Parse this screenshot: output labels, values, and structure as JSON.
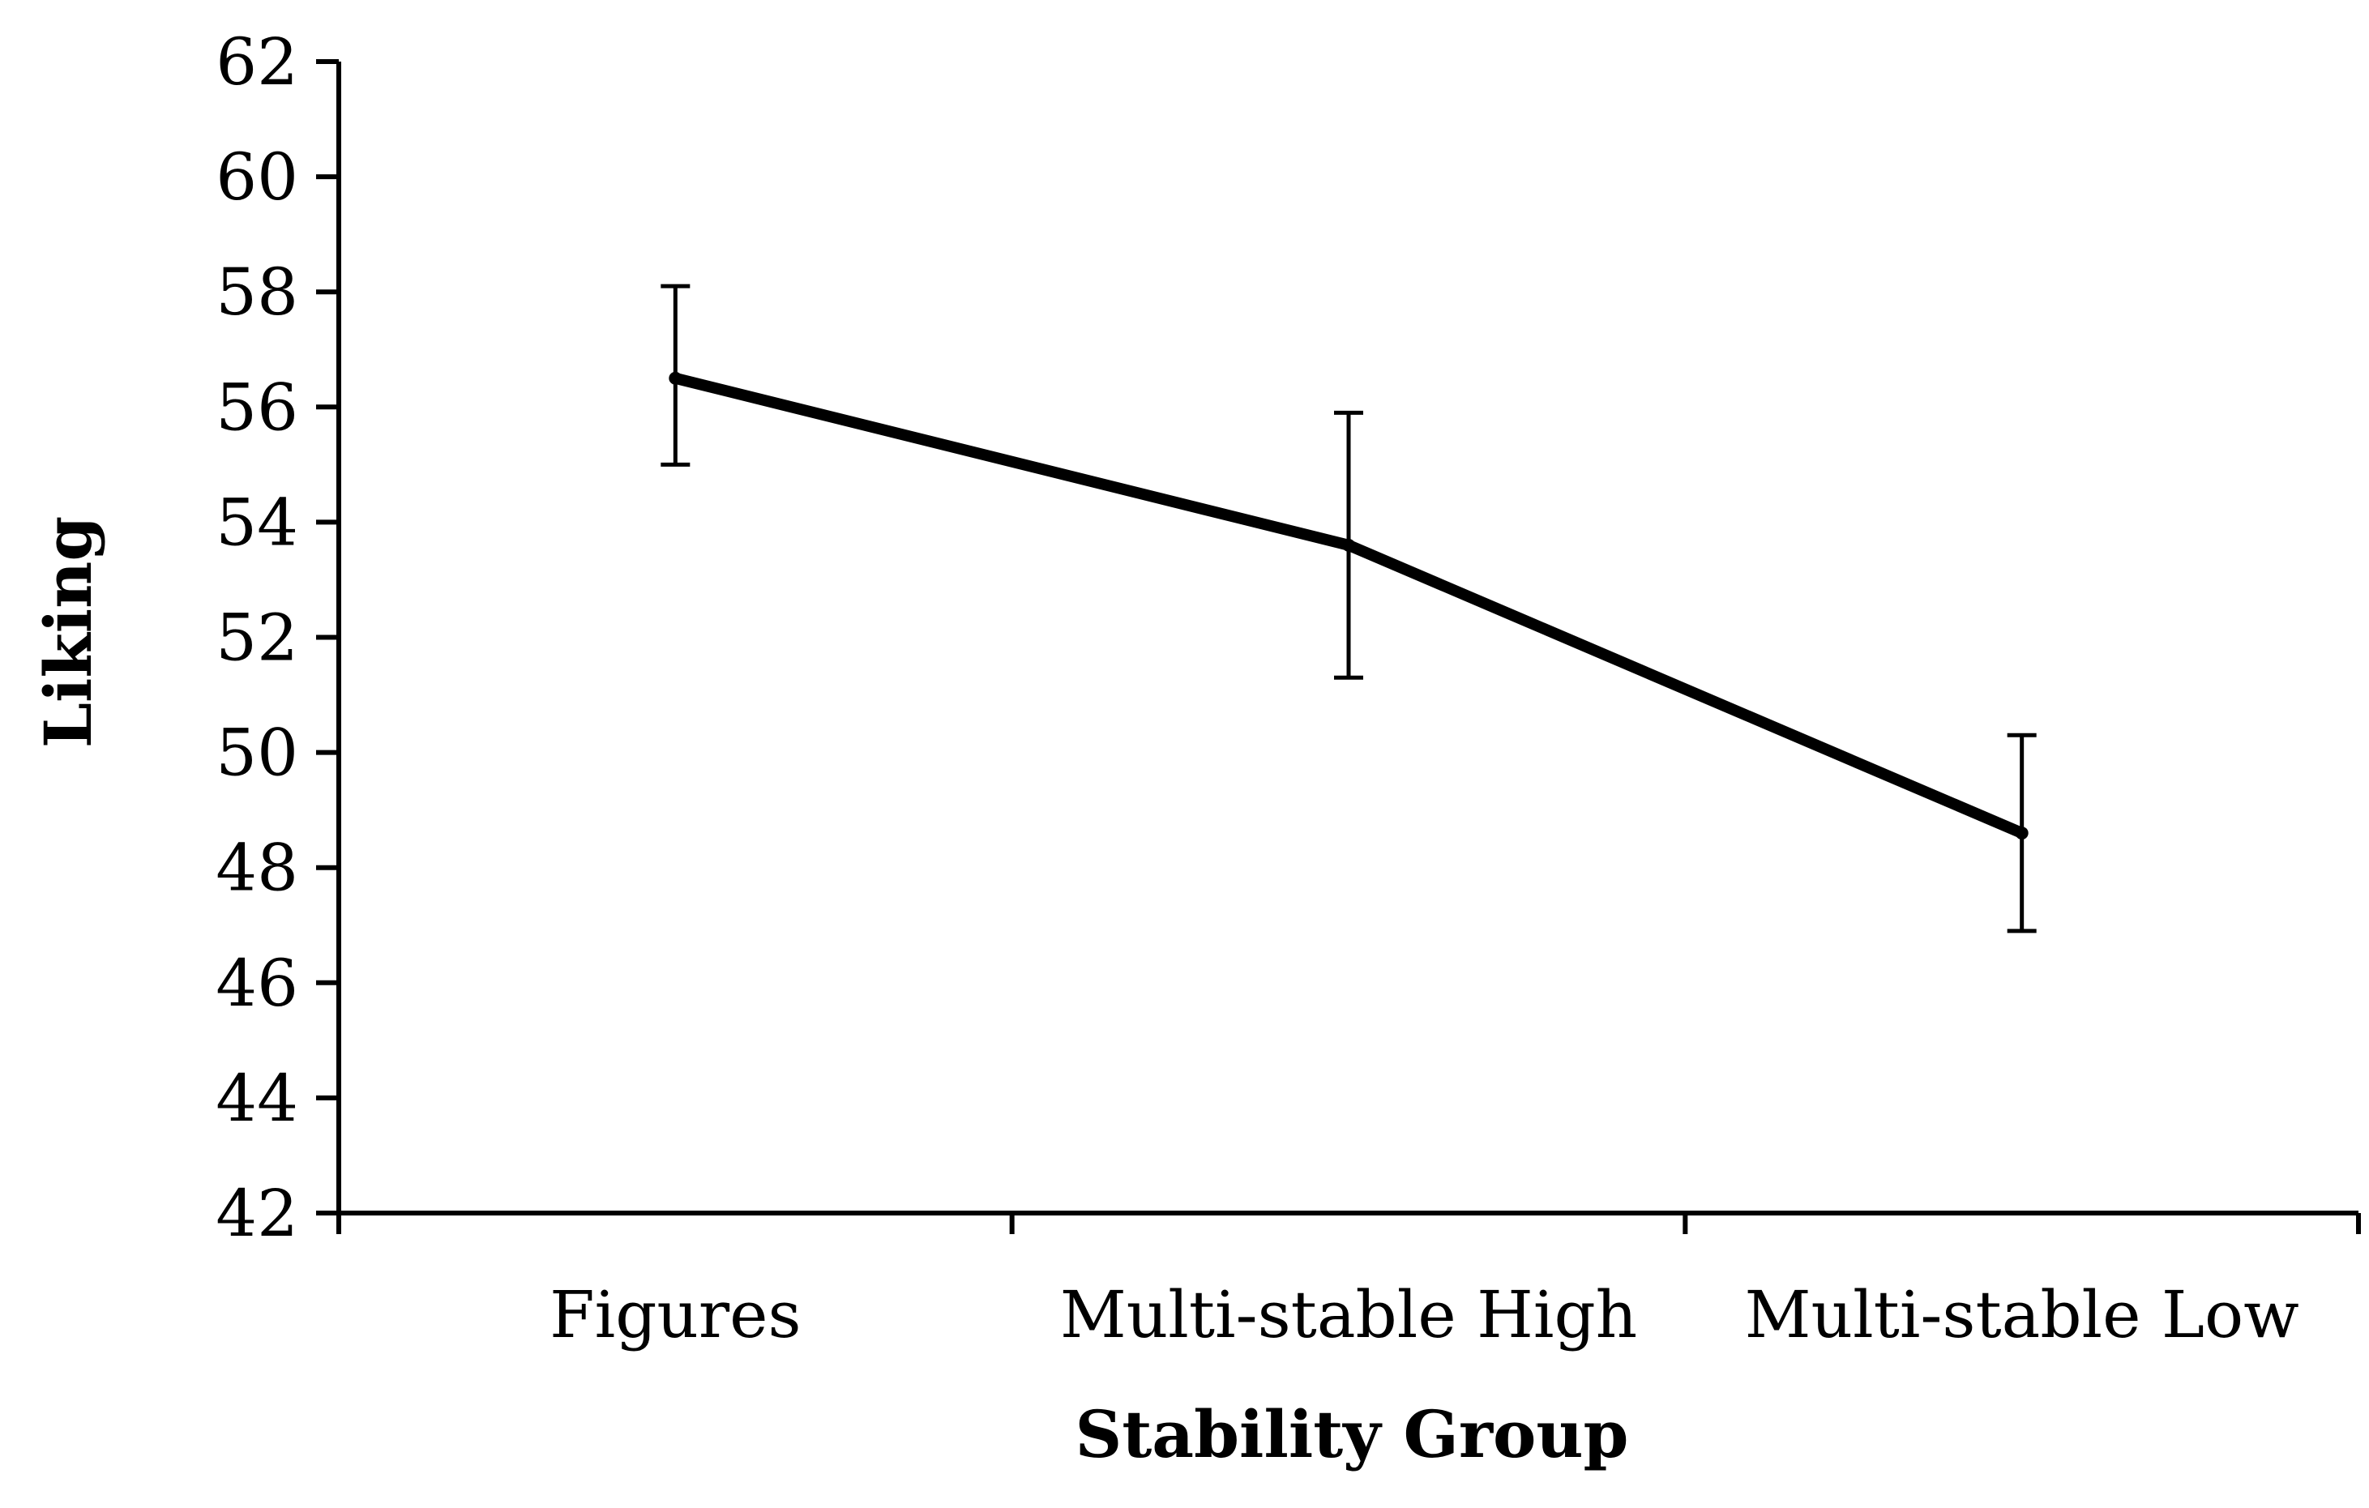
{
  "chart_data": {
    "type": "line",
    "title": "",
    "xlabel": "Stability Group",
    "ylabel": "Liking",
    "categories": [
      "Figures",
      "Multi-stable High",
      "Multi-stable Low"
    ],
    "series": [
      {
        "name": "Liking",
        "values": [
          56.5,
          53.6,
          48.6
        ],
        "error_low": [
          55.0,
          51.3,
          46.9
        ],
        "error_high": [
          58.1,
          55.9,
          50.3
        ]
      }
    ],
    "ylim": [
      42,
      62
    ],
    "yticks": [
      42,
      44,
      46,
      48,
      50,
      52,
      54,
      56,
      58,
      60,
      62
    ],
    "ytick_labels": [
      "42",
      "44",
      "46",
      "48",
      "50",
      "52",
      "54",
      "56",
      "58",
      "60",
      "62"
    ],
    "grid": false,
    "legend": "none"
  },
  "colors": {
    "line": "#000000",
    "background": "#ffffff"
  }
}
